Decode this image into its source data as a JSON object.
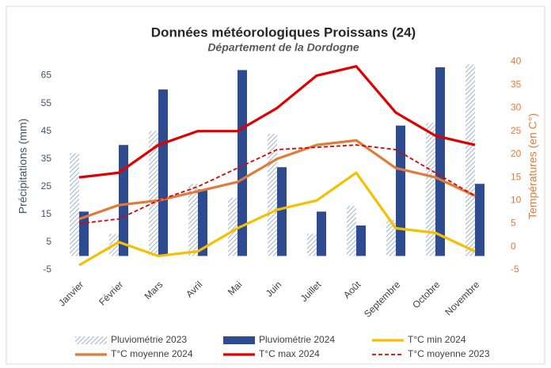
{
  "chart_data": {
    "type": "combo",
    "title": "Données météorologiques Proissans (24)",
    "subtitle": "Département de la Dordogne",
    "y_label": "Précipitations (mm)",
    "y2_label": "Températures (en C°)",
    "categories": [
      "Janvier",
      "Février",
      "Mars",
      "Avril",
      "Mai",
      "Juin",
      "Juillet",
      "Août",
      "Septembre",
      "Octobre",
      "Novembre"
    ],
    "ylim": [
      -5,
      70
    ],
    "yticks": [
      -5,
      5,
      15,
      25,
      35,
      45,
      55,
      65
    ],
    "y2lim": [
      -5,
      40
    ],
    "y2ticks": [
      -5,
      0,
      5,
      10,
      15,
      20,
      25,
      30,
      35,
      40
    ],
    "y_color": "#44546a",
    "y2_color": "#e07b39",
    "series": [
      {
        "name": "Pluviométrie 2023",
        "type": "bar",
        "hatch": true,
        "color": "#9fb2c9",
        "values": [
          37,
          8,
          45,
          26,
          21,
          44,
          8,
          18,
          13,
          48,
          69
        ]
      },
      {
        "name": "Pluviométrie 2024",
        "type": "bar",
        "color": "#2f4b8f",
        "values": [
          16,
          40,
          60,
          24,
          67,
          32,
          16,
          11,
          47,
          68,
          26
        ]
      },
      {
        "name": "T°C min 2024",
        "type": "line",
        "axis": "y2",
        "color": "#f5c000",
        "values": [
          -4,
          1,
          -2,
          -1,
          4,
          8,
          10,
          16,
          4,
          3,
          -1
        ]
      },
      {
        "name": "T°C moyenne 2024",
        "type": "line",
        "axis": "y2",
        "color": "#e07b39",
        "values": [
          6,
          9,
          10,
          12,
          14,
          19,
          22,
          23,
          17,
          15,
          11
        ]
      },
      {
        "name": "T°C max 2024",
        "type": "line",
        "axis": "y2",
        "color": "#e00000",
        "values": [
          15,
          16,
          22,
          25,
          25,
          30,
          37,
          39,
          29,
          24,
          22
        ]
      },
      {
        "name": "T°C moyenne 2023",
        "type": "line",
        "axis": "y2",
        "dashed": true,
        "color": "#e00000",
        "values": [
          5,
          6,
          10,
          13,
          17,
          21,
          21.5,
          22,
          21,
          16,
          11
        ]
      }
    ]
  }
}
